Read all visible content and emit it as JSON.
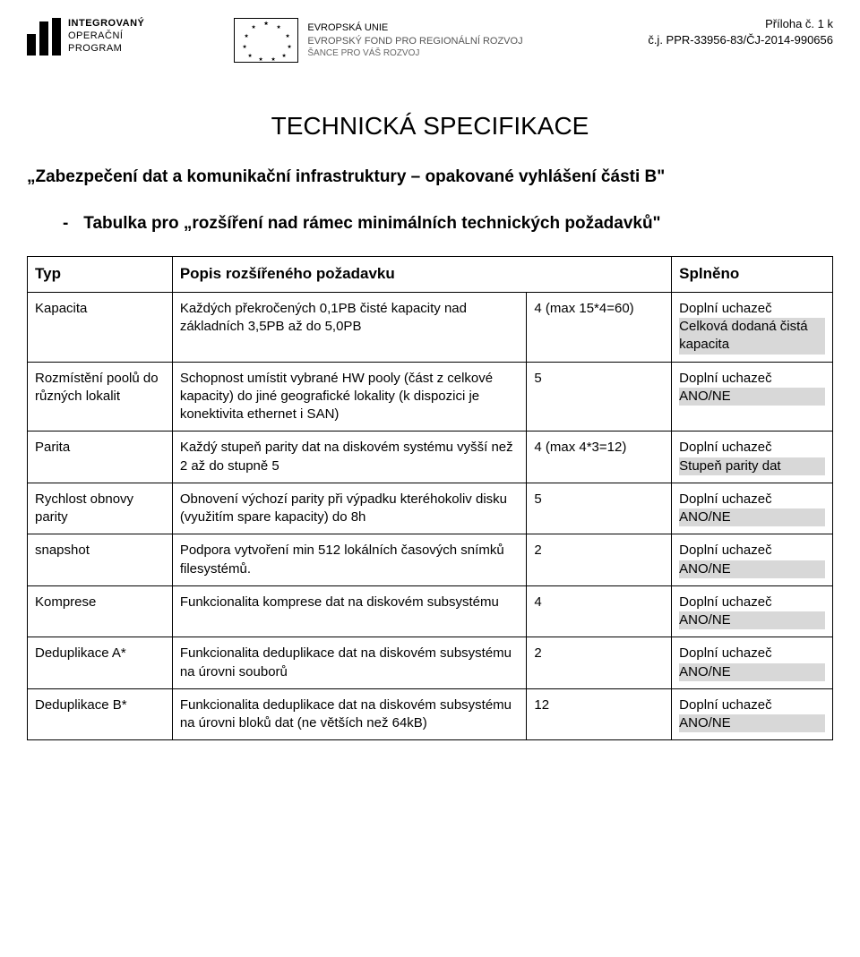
{
  "annex": {
    "line1": "Příloha č. 1 k",
    "line2": "č.j. PPR-33956-83/ČJ-2014-990656"
  },
  "logos": {
    "iop": {
      "line1": "INTEGROVANÝ",
      "line2": "OPERAČNÍ",
      "line3": "PROGRAM"
    },
    "eu": {
      "line1": "EVROPSKÁ UNIE",
      "line2": "EVROPSKÝ FOND PRO REGIONÁLNÍ ROZVOJ",
      "line3": "ŠANCE PRO VÁŠ ROZVOJ"
    }
  },
  "title": "TECHNICKÁ SPECIFIKACE",
  "subtitle": "„Zabezpečení dat a komunikační infrastruktury – opakované vyhlášení části B\"",
  "sublist_label": "Tabulka pro „rozšíření nad rámec minimálních technických požadavků\"",
  "columns": {
    "typ": "Typ",
    "popis": "Popis rozšířeného požadavku",
    "body": "",
    "splneno": "Splněno"
  },
  "rows": [
    {
      "typ": "Kapacita",
      "popis": "Každých překročených 0,1PB čisté kapacity nad základních 3,5PB až do 5,0PB",
      "body": "4 (max 15*4=60)",
      "spl_a": "Doplní uchazeč",
      "spl_b": "Celková dodaná čistá kapacita",
      "hi_b": true
    },
    {
      "typ": "Rozmístění poolů do různých lokalit",
      "popis": "Schopnost umístit vybrané HW pooly (část z celkové kapacity) do jiné geografické lokality (k dispozici je konektivita ethernet i SAN)",
      "body": "5",
      "spl_a": "Doplní uchazeč",
      "spl_b": "ANO/NE",
      "hi_b": true
    },
    {
      "typ": "Parita",
      "popis": "Každý stupeň parity dat na diskovém systému vyšší než 2 až do stupně 5",
      "body": "4 (max 4*3=12)",
      "spl_a": "Doplní uchazeč",
      "spl_b": "Stupeň parity dat",
      "hi_b": true
    },
    {
      "typ": "Rychlost obnovy parity",
      "popis": "Obnovení výchozí parity při výpadku kteréhokoliv disku (využitím spare kapacity) do 8h",
      "body": "5",
      "spl_a": "Doplní uchazeč",
      "spl_b": "ANO/NE",
      "hi_b": true
    },
    {
      "typ": "snapshot",
      "popis": "Podpora vytvoření min 512 lokálních časových snímků filesystémů.",
      "body": "2",
      "spl_a": "Doplní uchazeč",
      "spl_b": "ANO/NE",
      "hi_b": true
    },
    {
      "typ": "Komprese",
      "popis": "Funkcionalita komprese dat na diskovém subsystému",
      "body": "4",
      "spl_a": "Doplní uchazeč",
      "spl_b": "ANO/NE",
      "hi_b": true
    },
    {
      "typ": "Deduplikace A*",
      "popis": "Funkcionalita deduplikace dat na diskovém subsystému na úrovni souborů",
      "body": "2",
      "spl_a": "Doplní uchazeč",
      "spl_b": "ANO/NE",
      "hi_b": true
    },
    {
      "typ": "Deduplikace B*",
      "popis": "Funkcionalita deduplikace dat na diskovém subsystému na úrovni bloků dat (ne větších než 64kB)",
      "body": "12",
      "spl_a": "Doplní uchazeč",
      "spl_b": "ANO/NE",
      "hi_b": true
    }
  ],
  "style": {
    "background_color": "#ffffff",
    "text_color": "#000000",
    "border_color": "#000000",
    "highlight_bg": "#d8d8d8",
    "title_fontsize": 28,
    "body_fontsize": 15,
    "subtitle_fontsize": 19,
    "font_family": "Arial"
  }
}
